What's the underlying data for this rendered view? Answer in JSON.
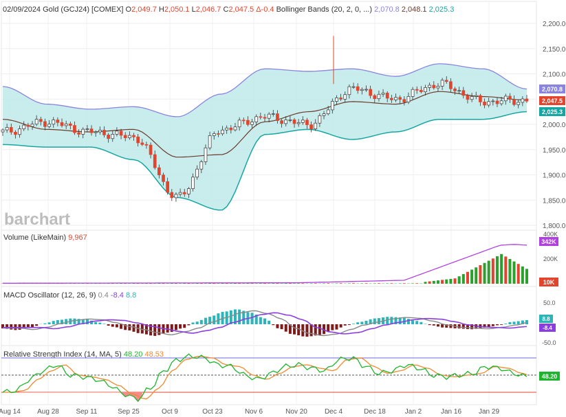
{
  "header": {
    "date": "02/09/2024",
    "instrument": "Gold (GCJ24) [COMEX]",
    "open_label": "O",
    "open": "2,049.7",
    "high_label": "H",
    "high": "2,050.1",
    "low_label": "L",
    "low": "2,046.7",
    "close_label": "C",
    "close": "2,047.5",
    "change": "Δ-0.4",
    "bb_label": "Bollinger Bands",
    "bb_params": "(20, 2, 0, ...)",
    "bb_upper": "2,070.8",
    "bb_mid": "2,048.1",
    "bb_lower": "2,025.3"
  },
  "watermark": "barchart",
  "price_axis": [
    "2,200.0",
    "2,150.0",
    "2,100.0",
    "2,050.0",
    "2,000.0",
    "1,950.0",
    "1,900.0",
    "1,850.0",
    "1,800.0"
  ],
  "price_tags": {
    "upper": "2,070.8",
    "last": "2,047.5",
    "lower": "2,025.3"
  },
  "volume": {
    "label": "Volume",
    "source": "(LikeMain)",
    "value": "9,967",
    "axis": [
      "400K",
      "200K"
    ],
    "tag_avg": "342K",
    "tag_last": "10K"
  },
  "macd": {
    "label": "MACD Oscillator",
    "params": "(12, 26, 9)",
    "v1": "0.4",
    "v2": "-8.4",
    "v3": "8.8",
    "axis": [
      "50.0",
      "-50.0"
    ],
    "tag_hist": "8.8",
    "tag_signal": "-8.4"
  },
  "rsi": {
    "label": "Relative Strength Index",
    "params": "(14, MA, 5)",
    "v1": "48.20",
    "v2": "48.53",
    "tag": "48.20"
  },
  "x_axis": [
    "Aug 14",
    "Aug 28",
    "Sep 11",
    "Sep 25",
    "Oct 9",
    "Oct 23",
    "Nov 6",
    "Nov 20",
    "Dec 4",
    "Dec 18",
    "Jan 2",
    "Jan 16",
    "Jan 29"
  ],
  "colors": {
    "up": "#2ca02c",
    "down": "#e2452d",
    "band_fill": "#bfe9ea",
    "band_line": "#8a84e0",
    "mid": "#6a3a2a",
    "lower_line": "#16a6a2",
    "macd_pos": "#2bb5b8",
    "macd_neg": "#7d1a1a",
    "signal": "#8a3ee0",
    "macd_line": "#888888",
    "rsi_line": "#1eb52e",
    "rsi_ma": "#f08a30",
    "vol_ma": "#b040e0"
  },
  "chart_data": {
    "type": "line",
    "title": "02/09/2024 Gold (GCJ24) [COMEX]",
    "x": [
      "Aug 14",
      "Aug 28",
      "Sep 11",
      "Sep 25",
      "Oct 9",
      "Oct 23",
      "Nov 6",
      "Nov 20",
      "Dec 4",
      "Dec 18",
      "Jan 2",
      "Jan 16",
      "Jan 29"
    ],
    "ylim": [
      1800,
      2200
    ],
    "series": [
      {
        "name": "Bollinger Bands",
        "values_upper": [
          2075,
          2040,
          2030,
          2035,
          2015,
          2060,
          2110,
          2105,
          2110,
          2095,
          2120,
          2110,
          2070
        ]
      },
      {
        "name": "Bollinger Bands",
        "values_mid": [
          2010,
          1990,
          1985,
          1990,
          1935,
          1940,
          2005,
          2025,
          2045,
          2040,
          2065,
          2055,
          2048
        ]
      },
      {
        "name": "Bollinger Bands",
        "values_lower": [
          1960,
          1955,
          1955,
          1930,
          1855,
          1830,
          1980,
          1990,
          1970,
          1985,
          2010,
          2010,
          2025
        ]
      },
      {
        "name": "close",
        "values": [
          1985,
          2005,
          1985,
          1975,
          1855,
          1990,
          2015,
          2000,
          2070,
          2050,
          2080,
          2045,
          2047.5
        ]
      }
    ],
    "volume_ylim": [
      0,
      400
    ],
    "rsi_levels": [
      70,
      50,
      30
    ]
  }
}
